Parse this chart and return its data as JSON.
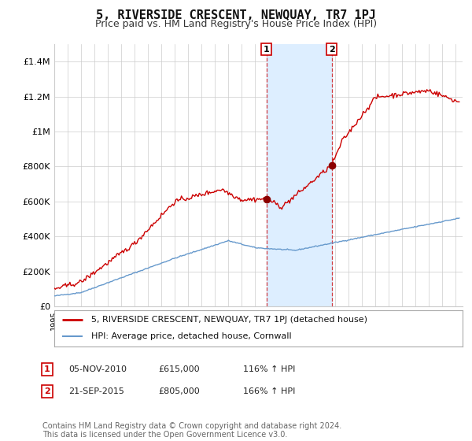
{
  "title": "5, RIVERSIDE CRESCENT, NEWQUAY, TR7 1PJ",
  "subtitle": "Price paid vs. HM Land Registry's House Price Index (HPI)",
  "xlim": [
    1995.0,
    2025.5
  ],
  "ylim": [
    0,
    1500000
  ],
  "yticks": [
    0,
    200000,
    400000,
    600000,
    800000,
    1000000,
    1200000,
    1400000
  ],
  "ytick_labels": [
    "£0",
    "£200K",
    "£400K",
    "£600K",
    "£800K",
    "£1M",
    "£1.2M",
    "£1.4M"
  ],
  "sale1_date": 2010.84,
  "sale1_price": 615000,
  "sale1_label": "1",
  "sale2_date": 2015.72,
  "sale2_price": 805000,
  "sale2_label": "2",
  "shade_x1": 2010.84,
  "shade_x2": 2015.72,
  "legend_line1": "5, RIVERSIDE CRESCENT, NEWQUAY, TR7 1PJ (detached house)",
  "legend_line2": "HPI: Average price, detached house, Cornwall",
  "table_data": [
    [
      "1",
      "05-NOV-2010",
      "£615,000",
      "116% ↑ HPI"
    ],
    [
      "2",
      "21-SEP-2015",
      "£805,000",
      "166% ↑ HPI"
    ]
  ],
  "footnote": "Contains HM Land Registry data © Crown copyright and database right 2024.\nThis data is licensed under the Open Government Licence v3.0.",
  "line_color_red": "#cc0000",
  "line_color_blue": "#6699cc",
  "shade_color": "#ddeeff",
  "grid_color": "#cccccc",
  "background_color": "#ffffff",
  "title_fontsize": 11,
  "subtitle_fontsize": 9,
  "axis_fontsize": 8,
  "legend_fontsize": 8,
  "table_fontsize": 8,
  "footnote_fontsize": 7
}
